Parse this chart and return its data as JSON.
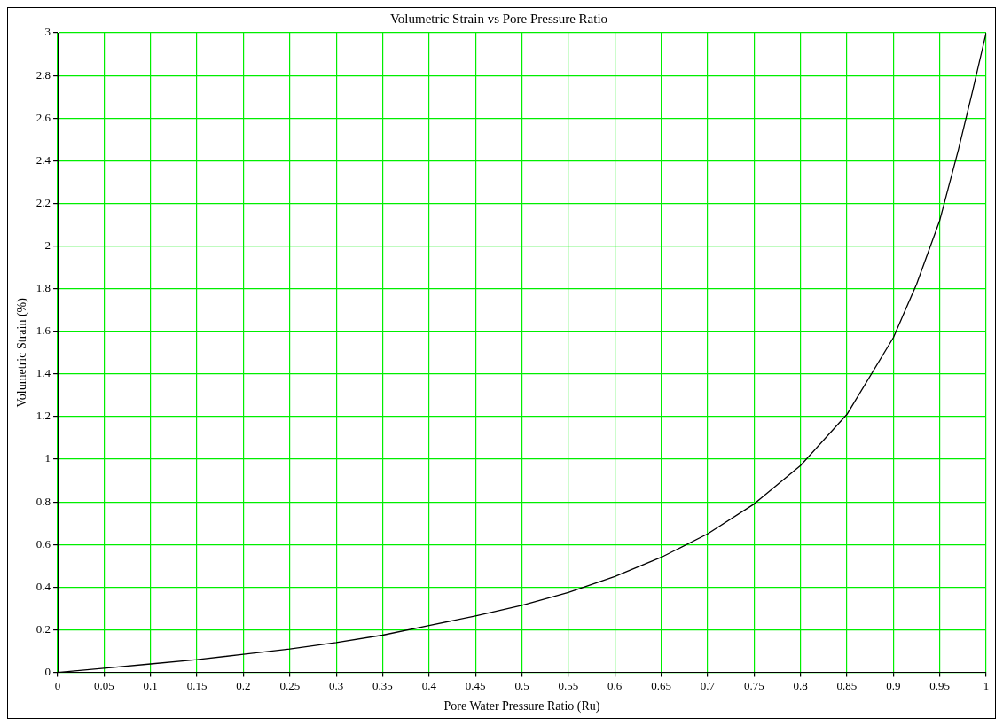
{
  "chart_data": {
    "type": "line",
    "title": "Volumetric Strain vs Pore Pressure Ratio",
    "xlabel": "Pore Water Pressure Ratio (Ru)",
    "ylabel": "Volumetric Strain (%)",
    "x": [
      0,
      0.05,
      0.1,
      0.15,
      0.2,
      0.25,
      0.3,
      0.35,
      0.4,
      0.45,
      0.5,
      0.55,
      0.6,
      0.65,
      0.7,
      0.75,
      0.8,
      0.85,
      0.9,
      0.925,
      0.95,
      0.97,
      0.985,
      1
    ],
    "series": [
      {
        "color": "#000000",
        "values": [
          0,
          0.02,
          0.04,
          0.06,
          0.085,
          0.11,
          0.14,
          0.175,
          0.22,
          0.265,
          0.315,
          0.375,
          0.45,
          0.54,
          0.65,
          0.79,
          0.97,
          1.21,
          1.57,
          1.82,
          2.12,
          2.45,
          2.72,
          3
        ]
      }
    ],
    "xlim": [
      0,
      1
    ],
    "ylim": [
      0,
      3
    ],
    "xticks": [
      0,
      0.05,
      0.1,
      0.15,
      0.2,
      0.25,
      0.3,
      0.35,
      0.4,
      0.45,
      0.5,
      0.55,
      0.6,
      0.65,
      0.7,
      0.75,
      0.8,
      0.85,
      0.9,
      0.95,
      1
    ],
    "yticks": [
      0,
      0.2,
      0.4,
      0.6,
      0.8,
      1,
      1.2,
      1.4,
      1.6,
      1.8,
      2,
      2.2,
      2.4,
      2.6,
      2.8,
      3
    ],
    "grid": true,
    "legend": false,
    "marker": "none",
    "line_style": "solid"
  }
}
